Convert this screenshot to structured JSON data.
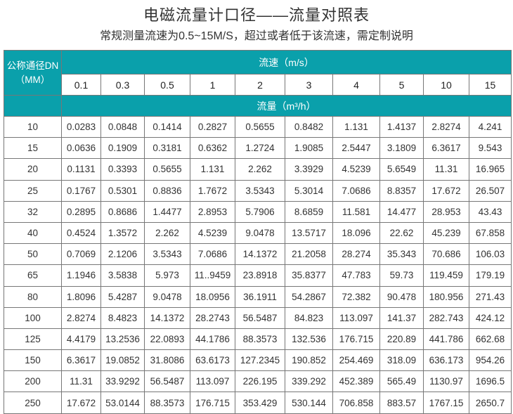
{
  "title": "电磁流量计口径——流量对照表",
  "subtitle": "常规测量流速为0.5~15M/S，超过或者低于该流速，需定制说明",
  "table": {
    "dn_header_line1": "公称通径DN",
    "dn_header_line2": "（MM）",
    "velocity_header": "流速（m/s）",
    "flow_header": "流量（m³/h）",
    "velocities": [
      "0.1",
      "0.3",
      "0.5",
      "1",
      "2",
      "3",
      "4",
      "5",
      "10",
      "15"
    ],
    "rows": [
      {
        "dn": "10",
        "values": [
          "0.0283",
          "0.0848",
          "0.1414",
          "0.2827",
          "0.5655",
          "0.8482",
          "1.131",
          "1.4137",
          "2.8274",
          "4.241"
        ]
      },
      {
        "dn": "15",
        "values": [
          "0.0636",
          "0.1909",
          "0.3181",
          "0.6362",
          "1.2724",
          "1.9085",
          "2.5447",
          "3.1809",
          "6.3617",
          "9.543"
        ]
      },
      {
        "dn": "20",
        "values": [
          "0.1131",
          "0.3393",
          "0.5655",
          "1.131",
          "2.262",
          "3.3929",
          "4.5239",
          "5.6549",
          "11.31",
          "16.965"
        ]
      },
      {
        "dn": "25",
        "values": [
          "0.1767",
          "0.5301",
          "0.8836",
          "1.7672",
          "3.5343",
          "5.3014",
          "7.0686",
          "8.8357",
          "17.672",
          "26.507"
        ]
      },
      {
        "dn": "32",
        "values": [
          "0.2895",
          "0.8686",
          "1.4477",
          "2.8953",
          "5.7906",
          "8.6859",
          "11.581",
          "14.477",
          "28.953",
          "43.43"
        ]
      },
      {
        "dn": "40",
        "values": [
          "0.4524",
          "1.3572",
          "2.262",
          "4.5239",
          "9.0478",
          "13.5717",
          "18.096",
          "22.62",
          "45.239",
          "67.858"
        ]
      },
      {
        "dn": "50",
        "values": [
          "0.7069",
          "2.1206",
          "3.5343",
          "7.0686",
          "14.1372",
          "21.2058",
          "28.274",
          "35.343",
          "70.686",
          "106.03"
        ]
      },
      {
        "dn": "65",
        "values": [
          "1.1946",
          "3.5838",
          "5.973",
          "11..9459",
          "23.8918",
          "35.8377",
          "47.783",
          "59.73",
          "119.459",
          "179.19"
        ]
      },
      {
        "dn": "80",
        "values": [
          "1.8096",
          "5.4287",
          "9.0478",
          "18.0956",
          "36.1911",
          "54.2867",
          "72.382",
          "90.478",
          "180.956",
          "271.43"
        ]
      },
      {
        "dn": "100",
        "values": [
          "2.8274",
          "8.4823",
          "14.1372",
          "28.2743",
          "56.5487",
          "84.823",
          "113.097",
          "141.37",
          "282.743",
          "424.12"
        ]
      },
      {
        "dn": "125",
        "values": [
          "4.4179",
          "13.2536",
          "22.0893",
          "44.1786",
          "88.3573",
          "132.536",
          "176.715",
          "220.89",
          "441.786",
          "662.68"
        ]
      },
      {
        "dn": "150",
        "values": [
          "6.3617",
          "19.0852",
          "31.8086",
          "63.6173",
          "127.2345",
          "190.852",
          "254.469",
          "318.09",
          "636.173",
          "954.26"
        ]
      },
      {
        "dn": "200",
        "values": [
          "11.31",
          "33.9292",
          "56.5487",
          "113.097",
          "226.195",
          "339.292",
          "452.389",
          "565.49",
          "1130.97",
          "1696.5"
        ]
      },
      {
        "dn": "250",
        "values": [
          "17.672",
          "53.0144",
          "88.3573",
          "176.715",
          "353.429",
          "530.144",
          "706.858",
          "883.57",
          "1767.15",
          "2650.7"
        ]
      }
    ]
  },
  "colors": {
    "header_teal": "#0aa0ab"
  }
}
